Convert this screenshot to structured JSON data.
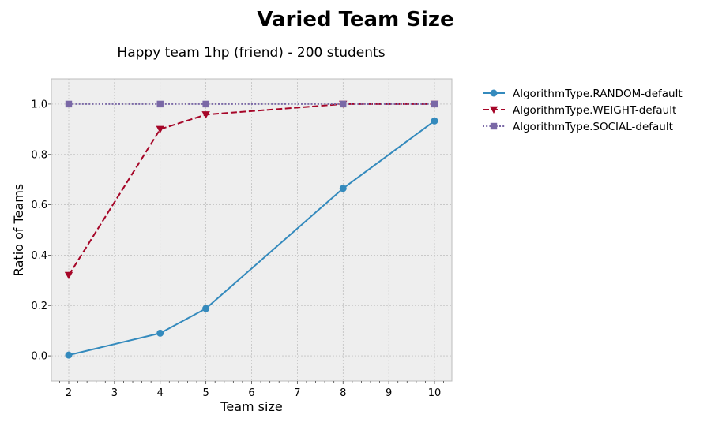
{
  "chart_data": {
    "type": "line",
    "title": "Varied Team Size",
    "subtitle": "Happy team 1hp (friend) - 200 students",
    "xlabel": "Team size",
    "ylabel": "Ratio of Teams",
    "xlim": [
      1.62,
      10.38
    ],
    "ylim": [
      -0.1,
      1.1
    ],
    "x_ticks": [
      2,
      3,
      4,
      5,
      6,
      7,
      8,
      9,
      10
    ],
    "y_ticks": [
      0.0,
      0.2,
      0.4,
      0.6,
      0.8,
      1.0
    ],
    "x_tick_labels": [
      "2",
      "3",
      "4",
      "5",
      "6",
      "7",
      "8",
      "9",
      "10"
    ],
    "y_tick_labels": [
      "0.0",
      "0.2",
      "0.4",
      "0.6",
      "0.8",
      "1.0"
    ],
    "grid": true,
    "legend_position": "outside-right",
    "series": [
      {
        "name": "AlgorithmType.RANDOM-default",
        "color": "#348ABD",
        "marker": "circle",
        "dash": "solid",
        "x": [
          2,
          4,
          5,
          8,
          10
        ],
        "y": [
          0.003,
          0.09,
          0.188,
          0.665,
          0.933
        ]
      },
      {
        "name": "AlgorithmType.WEIGHT-default",
        "color": "#A60628",
        "marker": "triangle-down",
        "dash": "dashed",
        "x": [
          2,
          4,
          5,
          8,
          10
        ],
        "y": [
          0.32,
          0.9,
          0.958,
          1.0,
          1.0
        ]
      },
      {
        "name": "AlgorithmType.SOCIAL-default",
        "color": "#7A68A6",
        "marker": "square",
        "dash": "dotted",
        "x": [
          2,
          4,
          5,
          8,
          10
        ],
        "y": [
          1.0,
          1.0,
          1.0,
          1.0,
          1.0
        ]
      }
    ]
  }
}
